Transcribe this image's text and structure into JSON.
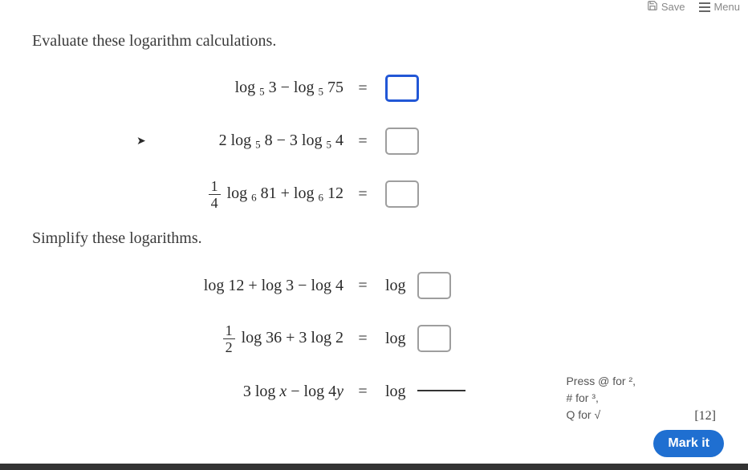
{
  "topbar": {
    "save_label": "Save",
    "menu_label": "Menu"
  },
  "section1": {
    "instruction": "Evaluate these logarithm calculations.",
    "problems": [
      {
        "expr_html": "log <span class='sub'>5</span> 3 − log <span class='sub'>5</span> 75",
        "active": true
      },
      {
        "expr_html": "2 log <span class='sub'>5</span> 8 − 3 log <span class='sub'>5</span> 4",
        "active": false
      },
      {
        "expr_html": "<span class='frac'><span class='n'>1</span><span class='d'>4</span></span> log <span class='sub'>6</span> 81 + log <span class='sub'>6</span> 12",
        "active": false
      }
    ]
  },
  "section2": {
    "instruction": "Simplify these logarithms.",
    "answer_prefix": "log",
    "problems": [
      {
        "expr_html": "log  12 + log  3 − log  4",
        "mode": "box"
      },
      {
        "expr_html": "<span class='frac'><span class='n'>1</span><span class='d'>2</span></span> log  36 + 3 log  2",
        "mode": "box"
      },
      {
        "expr_html": "3 log  <span class='italic'>x</span> − log  4<span class='italic'>y</span>",
        "mode": "frac"
      }
    ]
  },
  "hint": {
    "line1": "Press @ for ²,",
    "line2": "# for ³,",
    "line3": "Q for √"
  },
  "marks": "[12]",
  "mark_button": "Mark it",
  "equals": "=",
  "colors": {
    "active_border": "#2257d6",
    "box_border": "#9e9e9e",
    "button_bg": "#1f6fd1",
    "text": "#2a2a2a"
  }
}
